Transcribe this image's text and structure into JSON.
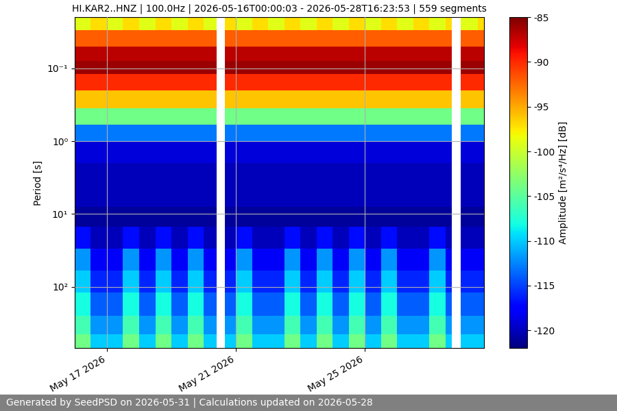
{
  "chart_data": {
    "type": "heatmap",
    "title": "HI.KAR2..HNZ | 100.0Hz | 2026-05-16T00:00:03 - 2026-05-28T16:23:53 | 559 segments",
    "ylabel": "Period [s]",
    "colorbar_label": "Amplitude [m²/s⁴/Hz] [dB]",
    "footer": "Generated by SeedPSD on 2026-05-31 | Calculations updated on 2026-05-28",
    "color": "jet",
    "log": "y",
    "grid": true,
    "x_edges": [
      "2026-05-16T00:00:03",
      "2026-05-16T12:00:00",
      "2026-05-17T00:00:00",
      "2026-05-17T12:00:00",
      "2026-05-18T00:00:00",
      "2026-05-18T12:00:00",
      "2026-05-19T00:00:00",
      "2026-05-19T12:00:00",
      "2026-05-20T00:00:00",
      "2026-05-20T09:40:00",
      "2026-05-20T15:50:00",
      "2026-05-21T00:00:00",
      "2026-05-21T12:00:00",
      "2026-05-22T00:00:00",
      "2026-05-22T12:00:00",
      "2026-05-23T00:00:00",
      "2026-05-23T12:00:00",
      "2026-05-24T00:00:00",
      "2026-05-24T12:00:00",
      "2026-05-25T00:00:00",
      "2026-05-25T12:00:00",
      "2026-05-26T00:00:00",
      "2026-05-26T12:00:00",
      "2026-05-27T00:00:00",
      "2026-05-27T12:00:00",
      "2026-05-27T16:50:00",
      "2026-05-27T23:30:00",
      "2026-05-28T12:00:00",
      "2026-05-28T16:23:53"
    ],
    "y_edges": [
      0.02,
      0.03,
      0.05,
      0.08,
      0.12,
      0.2,
      0.35,
      0.6,
      1,
      2,
      4,
      8,
      15,
      30,
      60,
      120,
      250,
      450,
      690
    ],
    "cells": [
      [
        -99,
        -97,
        -99,
        -97,
        -99,
        -97,
        -99,
        -97,
        -99,
        null,
        -97,
        -99,
        -97,
        -99,
        -97,
        -99,
        -97,
        -99,
        -97,
        -99,
        -97,
        -99,
        -97,
        -99,
        -97,
        null,
        -99,
        -97
      ],
      [
        -92,
        -92,
        -92,
        -92,
        -92,
        -92,
        -92,
        -92,
        -92,
        null,
        -92,
        -92,
        -92,
        -92,
        -92,
        -92,
        -92,
        -92,
        -92,
        -92,
        -92,
        -92,
        -92,
        -92,
        -92,
        null,
        -92,
        -92
      ],
      [
        -87,
        -87,
        -87,
        -87,
        -87,
        -87,
        -87,
        -87,
        -87,
        null,
        -87,
        -87,
        -87,
        -87,
        -87,
        -87,
        -87,
        -87,
        -87,
        -87,
        -87,
        -87,
        -87,
        -87,
        -87,
        null,
        -87,
        -87
      ],
      [
        -86,
        -86,
        -86,
        -86,
        -86,
        -86,
        -86,
        -86,
        -86,
        null,
        -86,
        -86,
        -86,
        -86,
        -86,
        -86,
        -86,
        -86,
        -86,
        -86,
        -86,
        -86,
        -86,
        -86,
        -86,
        null,
        -86,
        -86
      ],
      [
        -90,
        -90,
        -90,
        -90,
        -90,
        -90,
        -90,
        -90,
        -90,
        null,
        -90,
        -90,
        -90,
        -90,
        -90,
        -90,
        -90,
        -90,
        -90,
        -90,
        -90,
        -90,
        -90,
        -90,
        -90,
        null,
        -90,
        -90
      ],
      [
        -96,
        -96,
        -96,
        -96,
        -96,
        -96,
        -96,
        -96,
        -96,
        null,
        -96,
        -96,
        -96,
        -96,
        -96,
        -96,
        -96,
        -96,
        -96,
        -96,
        -96,
        -96,
        -96,
        -96,
        -96,
        null,
        -96,
        -96
      ],
      [
        -104,
        -104,
        -104,
        -104,
        -104,
        -104,
        -104,
        -104,
        -104,
        null,
        -104,
        -104,
        -104,
        -104,
        -104,
        -104,
        -104,
        -104,
        -104,
        -104,
        -104,
        -104,
        -104,
        -104,
        -104,
        null,
        -104,
        -104
      ],
      [
        -113,
        -113,
        -113,
        -113,
        -113,
        -113,
        -113,
        -113,
        -113,
        null,
        -113,
        -113,
        -113,
        -113,
        -113,
        -113,
        -113,
        -113,
        -113,
        -113,
        -113,
        -113,
        -113,
        -113,
        -113,
        null,
        -113,
        -113
      ],
      [
        -119,
        -119,
        -119,
        -119,
        -119,
        -119,
        -119,
        -119,
        -119,
        null,
        -119,
        -119,
        -119,
        -119,
        -119,
        -119,
        -119,
        -119,
        -119,
        -119,
        -119,
        -119,
        -119,
        -119,
        -119,
        null,
        -119,
        -119
      ],
      [
        -120,
        -120,
        -120,
        -120,
        -120,
        -120,
        -120,
        -120,
        -120,
        null,
        -120,
        -120,
        -120,
        -120,
        -120,
        -120,
        -120,
        -120,
        -120,
        -120,
        -120,
        -120,
        -120,
        -120,
        -120,
        null,
        -120,
        -120
      ],
      [
        -120,
        -120,
        -120,
        -120,
        -120,
        -120,
        -120,
        -120,
        -120,
        null,
        -120,
        -120,
        -120,
        -120,
        -120,
        -120,
        -120,
        -120,
        -120,
        -120,
        -120,
        -120,
        -120,
        -120,
        -120,
        null,
        -120,
        -120
      ],
      [
        -121,
        -121,
        -121,
        -121,
        -121,
        -121,
        -121,
        -121,
        -121,
        null,
        -121,
        -121,
        -121,
        -121,
        -121,
        -121,
        -121,
        -121,
        -121,
        -121,
        -121,
        -121,
        -121,
        -121,
        -121,
        null,
        -121,
        -121
      ],
      [
        -117,
        -120,
        -120,
        -117,
        -120,
        -117,
        -120,
        -117,
        -120,
        null,
        -120,
        -117,
        -120,
        -120,
        -117,
        -120,
        -117,
        -120,
        -117,
        -120,
        -117,
        -120,
        -120,
        -117,
        -120,
        null,
        -120,
        -120
      ],
      [
        -112,
        -118,
        -118,
        -112,
        -118,
        -112,
        -118,
        -112,
        -118,
        null,
        -118,
        -112,
        -118,
        -118,
        -112,
        -118,
        -112,
        -118,
        -112,
        -118,
        -112,
        -118,
        -118,
        -112,
        -118,
        null,
        -118,
        -118
      ],
      [
        -110,
        -116,
        -116,
        -110,
        -116,
        -110,
        -116,
        -110,
        -116,
        null,
        -116,
        -110,
        -116,
        -116,
        -110,
        -116,
        -110,
        -116,
        -110,
        -116,
        -110,
        -116,
        -116,
        -110,
        -116,
        null,
        -116,
        -116
      ],
      [
        -108,
        -114,
        -114,
        -108,
        -114,
        -108,
        -114,
        -108,
        -114,
        null,
        -114,
        -108,
        -114,
        -114,
        -108,
        -114,
        -108,
        -114,
        -108,
        -114,
        -108,
        -114,
        -114,
        -108,
        -114,
        null,
        -114,
        -114
      ],
      [
        -106,
        -112,
        -112,
        -106,
        -112,
        -106,
        -112,
        -106,
        -112,
        null,
        -112,
        -106,
        -112,
        -112,
        -106,
        -112,
        -106,
        -112,
        -106,
        -112,
        -106,
        -112,
        -112,
        -106,
        -112,
        null,
        -112,
        -112
      ],
      [
        -104,
        -110,
        -110,
        -104,
        -110,
        -104,
        -110,
        -104,
        -110,
        null,
        -110,
        -104,
        -110,
        -110,
        -104,
        -110,
        -104,
        -110,
        -104,
        -110,
        -104,
        -110,
        -110,
        -104,
        -110,
        null,
        -110,
        -110
      ]
    ],
    "xlim": [
      "2026-05-16T00:00:03",
      "2026-05-28T16:23:53"
    ],
    "xticks": [
      {
        "value": "2026-05-17T00:00:00",
        "label": "May 17 2026"
      },
      {
        "value": "2026-05-21T00:00:00",
        "label": "May 21 2026"
      },
      {
        "value": "2026-05-25T00:00:00",
        "label": "May 25 2026"
      }
    ],
    "ylim": [
      690,
      0.02
    ],
    "yticks": [
      {
        "value": 0.1,
        "label": "10⁻¹"
      },
      {
        "value": 1,
        "label": "10⁰"
      },
      {
        "value": 10,
        "label": "10¹"
      },
      {
        "value": 100,
        "label": "10²"
      }
    ],
    "colorbar_range": [
      -122,
      -85
    ],
    "colorbar_ticks": [
      -120,
      -115,
      -110,
      -105,
      -100,
      -95,
      -90,
      -85
    ]
  }
}
